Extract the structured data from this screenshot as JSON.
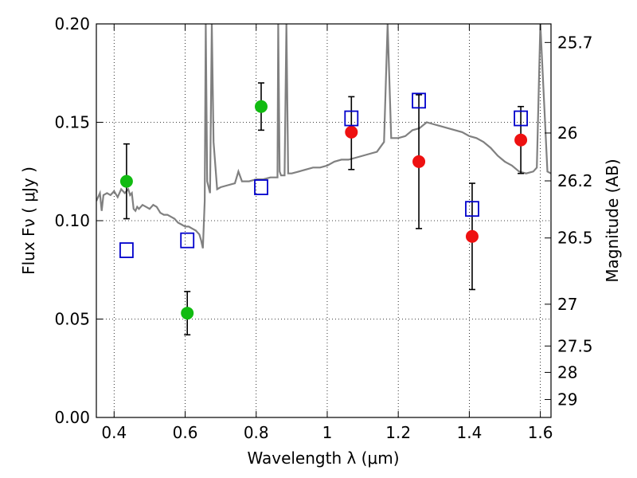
{
  "chart_data": {
    "type": "scatter",
    "xlabel": "Wavelength  λ (μm)",
    "ylabel": "Flux  Fν  ( μJy )",
    "y2label": "Magnitude (AB)",
    "xlim": [
      0.35,
      1.63
    ],
    "ylim": [
      0.0,
      0.2
    ],
    "grid": true,
    "grid_style": "dotted",
    "x_ticks": [
      {
        "value": 0.4,
        "label": "0.4"
      },
      {
        "value": 0.6,
        "label": "0.6"
      },
      {
        "value": 0.8,
        "label": "0.8"
      },
      {
        "value": 1.0,
        "label": "1"
      },
      {
        "value": 1.2,
        "label": "1.2"
      },
      {
        "value": 1.4,
        "label": "1.4"
      },
      {
        "value": 1.6,
        "label": "1.6"
      }
    ],
    "y_ticks": [
      {
        "value": 0.0,
        "label": "0.00"
      },
      {
        "value": 0.05,
        "label": "0.05"
      },
      {
        "value": 0.1,
        "label": "0.10"
      },
      {
        "value": 0.15,
        "label": "0.15"
      },
      {
        "value": 0.2,
        "label": "0.20"
      }
    ],
    "mag_ticks": [
      {
        "value": 25.7,
        "label": "25.7"
      },
      {
        "value": 26.0,
        "label": "26"
      },
      {
        "value": 26.2,
        "label": "26.2"
      },
      {
        "value": 26.5,
        "label": "26.5"
      },
      {
        "value": 27.0,
        "label": "27"
      },
      {
        "value": 27.5,
        "label": "27.5"
      },
      {
        "value": 28.0,
        "label": "28"
      },
      {
        "value": 29.0,
        "label": "29"
      }
    ],
    "colors": {
      "sed": "#808080",
      "green": "#11bb11",
      "red": "#ee1111",
      "model": "#0000cc",
      "errorbar": "#000000"
    },
    "series": [
      {
        "marker": "circle",
        "color": "#11bb11",
        "points": [
          {
            "x": 0.435,
            "y": 0.12,
            "err_low": 0.101,
            "err_high": 0.139
          },
          {
            "x": 0.606,
            "y": 0.053,
            "err_low": 0.042,
            "err_high": 0.064
          },
          {
            "x": 0.814,
            "y": 0.158,
            "err_low": 0.146,
            "err_high": 0.17
          }
        ]
      },
      {
        "marker": "circle",
        "color": "#ee1111",
        "points": [
          {
            "x": 1.068,
            "y": 0.145,
            "err_low": 0.126,
            "err_high": 0.163
          },
          {
            "x": 1.258,
            "y": 0.13,
            "err_low": 0.096,
            "err_high": 0.164
          },
          {
            "x": 1.408,
            "y": 0.092,
            "err_low": 0.065,
            "err_high": 0.119
          },
          {
            "x": 1.545,
            "y": 0.141,
            "err_low": 0.124,
            "err_high": 0.158
          }
        ]
      },
      {
        "marker": "square-open",
        "color": "#0000cc",
        "points": [
          {
            "x": 0.435,
            "y": 0.085
          },
          {
            "x": 0.606,
            "y": 0.09
          },
          {
            "x": 0.814,
            "y": 0.117
          },
          {
            "x": 1.068,
            "y": 0.152
          },
          {
            "x": 1.258,
            "y": 0.161
          },
          {
            "x": 1.408,
            "y": 0.106
          },
          {
            "x": 1.545,
            "y": 0.152
          }
        ]
      }
    ],
    "sed_curve": [
      [
        0.35,
        0.11
      ],
      [
        0.355,
        0.112
      ],
      [
        0.36,
        0.114
      ],
      [
        0.365,
        0.105
      ],
      [
        0.37,
        0.113
      ],
      [
        0.38,
        0.114
      ],
      [
        0.39,
        0.113
      ],
      [
        0.4,
        0.115
      ],
      [
        0.41,
        0.112
      ],
      [
        0.42,
        0.116
      ],
      [
        0.43,
        0.114
      ],
      [
        0.44,
        0.116
      ],
      [
        0.445,
        0.113
      ],
      [
        0.45,
        0.114
      ],
      [
        0.455,
        0.106
      ],
      [
        0.46,
        0.105
      ],
      [
        0.465,
        0.107
      ],
      [
        0.47,
        0.106
      ],
      [
        0.48,
        0.108
      ],
      [
        0.49,
        0.107
      ],
      [
        0.5,
        0.106
      ],
      [
        0.51,
        0.108
      ],
      [
        0.52,
        0.107
      ],
      [
        0.53,
        0.104
      ],
      [
        0.54,
        0.103
      ],
      [
        0.55,
        0.103
      ],
      [
        0.56,
        0.102
      ],
      [
        0.57,
        0.101
      ],
      [
        0.58,
        0.099
      ],
      [
        0.59,
        0.098
      ],
      [
        0.6,
        0.097
      ],
      [
        0.61,
        0.097
      ],
      [
        0.62,
        0.096
      ],
      [
        0.63,
        0.095
      ],
      [
        0.64,
        0.093
      ],
      [
        0.645,
        0.09
      ],
      [
        0.65,
        0.086
      ],
      [
        0.655,
        0.11
      ],
      [
        0.658,
        0.2
      ],
      [
        0.662,
        0.12
      ],
      [
        0.67,
        0.114
      ],
      [
        0.675,
        0.2
      ],
      [
        0.68,
        0.14
      ],
      [
        0.69,
        0.116
      ],
      [
        0.7,
        0.117
      ],
      [
        0.72,
        0.118
      ],
      [
        0.74,
        0.119
      ],
      [
        0.75,
        0.125
      ],
      [
        0.76,
        0.12
      ],
      [
        0.78,
        0.12
      ],
      [
        0.8,
        0.121
      ],
      [
        0.82,
        0.121
      ],
      [
        0.84,
        0.122
      ],
      [
        0.86,
        0.122
      ],
      [
        0.862,
        0.2
      ],
      [
        0.866,
        0.125
      ],
      [
        0.87,
        0.123
      ],
      [
        0.88,
        0.123
      ],
      [
        0.885,
        0.2
      ],
      [
        0.89,
        0.124
      ],
      [
        0.9,
        0.124
      ],
      [
        0.92,
        0.125
      ],
      [
        0.94,
        0.126
      ],
      [
        0.96,
        0.127
      ],
      [
        0.98,
        0.127
      ],
      [
        1.0,
        0.128
      ],
      [
        1.02,
        0.13
      ],
      [
        1.04,
        0.131
      ],
      [
        1.06,
        0.131
      ],
      [
        1.08,
        0.132
      ],
      [
        1.1,
        0.133
      ],
      [
        1.12,
        0.134
      ],
      [
        1.14,
        0.135
      ],
      [
        1.16,
        0.14
      ],
      [
        1.17,
        0.2
      ],
      [
        1.18,
        0.142
      ],
      [
        1.2,
        0.142
      ],
      [
        1.22,
        0.143
      ],
      [
        1.24,
        0.146
      ],
      [
        1.26,
        0.147
      ],
      [
        1.28,
        0.15
      ],
      [
        1.3,
        0.149
      ],
      [
        1.32,
        0.148
      ],
      [
        1.34,
        0.147
      ],
      [
        1.36,
        0.146
      ],
      [
        1.38,
        0.145
      ],
      [
        1.4,
        0.143
      ],
      [
        1.42,
        0.142
      ],
      [
        1.44,
        0.14
      ],
      [
        1.46,
        0.137
      ],
      [
        1.48,
        0.133
      ],
      [
        1.5,
        0.13
      ],
      [
        1.52,
        0.128
      ],
      [
        1.54,
        0.125
      ],
      [
        1.56,
        0.124
      ],
      [
        1.58,
        0.125
      ],
      [
        1.59,
        0.127
      ],
      [
        1.6,
        0.2
      ],
      [
        1.62,
        0.125
      ],
      [
        1.63,
        0.124
      ]
    ]
  }
}
